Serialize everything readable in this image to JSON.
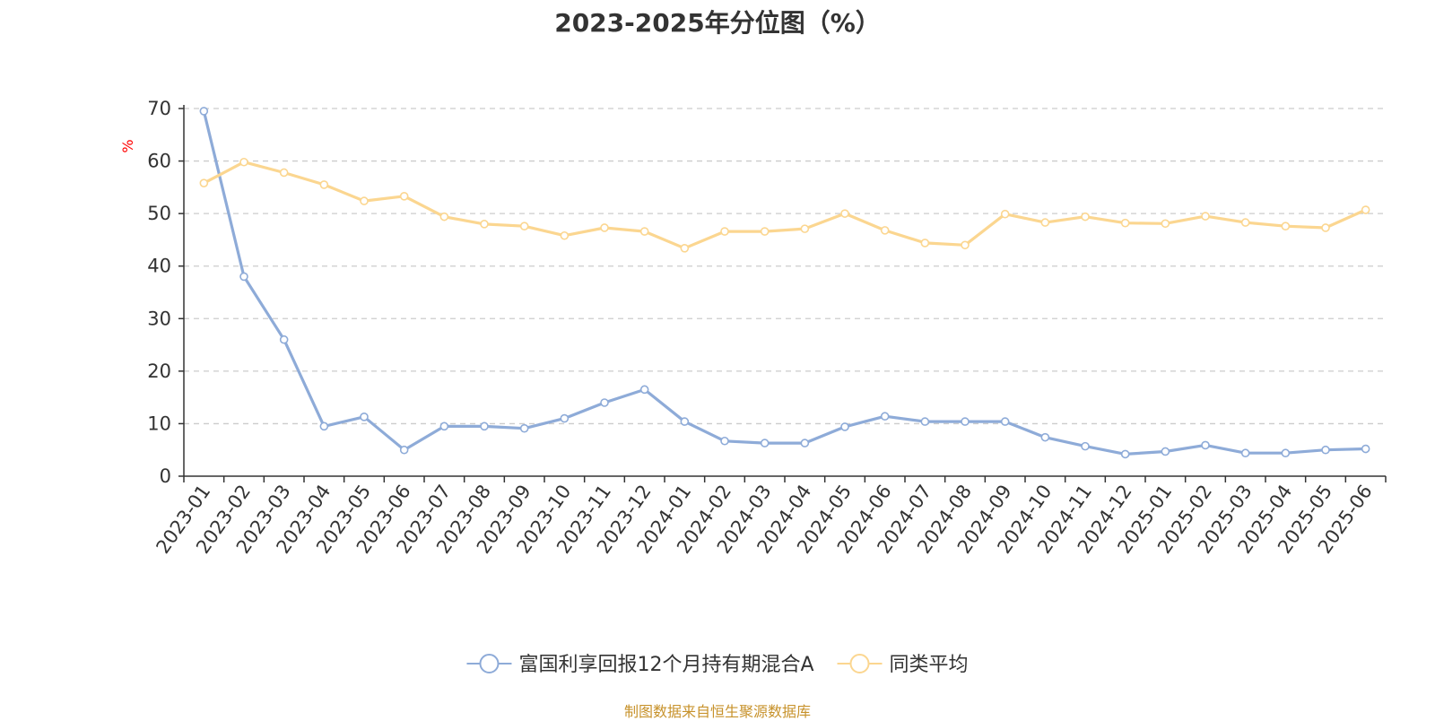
{
  "chart_data": {
    "type": "line",
    "title": "2023-2025年分位图（%）",
    "ylabel": "%",
    "xlabel": "",
    "ylim": [
      0,
      70
    ],
    "yticks": [
      0,
      10,
      20,
      30,
      40,
      50,
      60,
      70
    ],
    "grid": true,
    "legend_position": "bottom",
    "categories": [
      "2023-01",
      "2023-02",
      "2023-03",
      "2023-04",
      "2023-05",
      "2023-06",
      "2023-07",
      "2023-08",
      "2023-09",
      "2023-10",
      "2023-11",
      "2023-12",
      "2024-01",
      "2024-02",
      "2024-03",
      "2024-04",
      "2024-05",
      "2024-06",
      "2024-07",
      "2024-08",
      "2024-09",
      "2024-10",
      "2024-11",
      "2024-12",
      "2025-01",
      "2025-02",
      "2025-03",
      "2025-04",
      "2025-05",
      "2025-06"
    ],
    "series": [
      {
        "name": "富国利享回报12个月持有期混合A",
        "color": "#8eabd8",
        "values": [
          69.5,
          38.0,
          26.0,
          9.5,
          11.3,
          5.0,
          9.5,
          9.5,
          9.1,
          11.0,
          14.0,
          16.5,
          10.4,
          6.7,
          6.3,
          6.3,
          9.4,
          11.4,
          10.4,
          10.4,
          10.4,
          7.4,
          5.7,
          4.2,
          4.7,
          5.9,
          4.4,
          4.4,
          5.0,
          5.2
        ]
      },
      {
        "name": "同类平均",
        "color": "#fbd690",
        "values": [
          55.8,
          59.8,
          57.8,
          55.5,
          52.4,
          53.3,
          49.4,
          48.0,
          47.6,
          45.8,
          47.3,
          46.6,
          43.4,
          46.6,
          46.6,
          47.1,
          50.0,
          46.8,
          44.4,
          44.0,
          49.9,
          48.3,
          49.4,
          48.2,
          48.1,
          49.5,
          48.3,
          47.6,
          47.3,
          50.7
        ]
      }
    ]
  },
  "source_text": "制图数据来自恒生聚源数据库"
}
